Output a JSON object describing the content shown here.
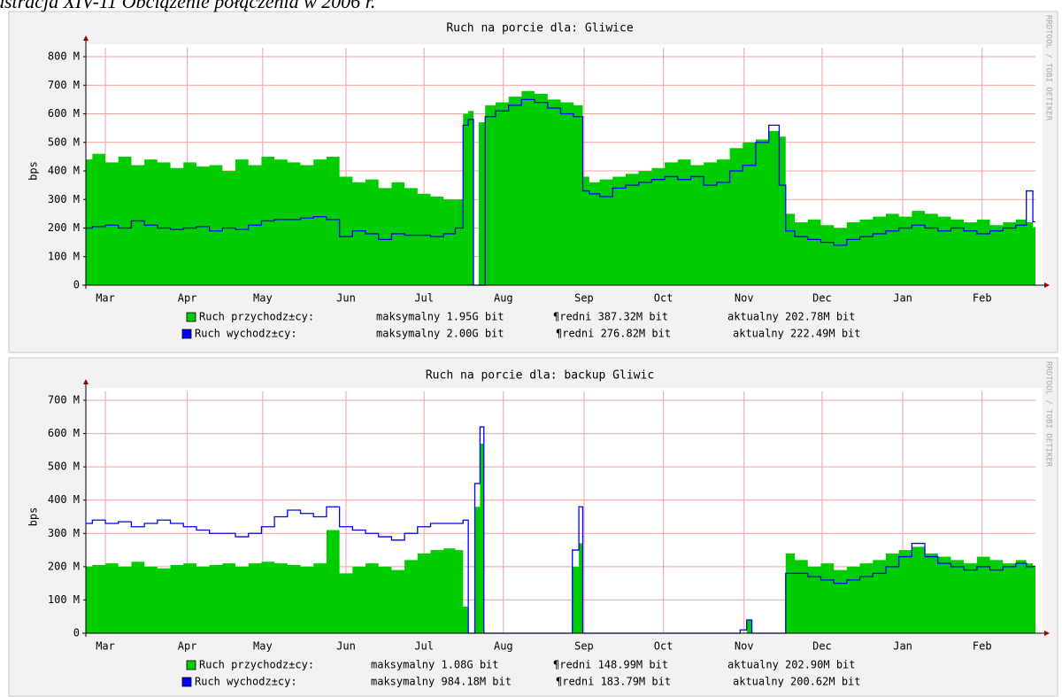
{
  "caption": "ustracja XIV-11 Obciążenie połączenia w 2006 r.",
  "chart_data": [
    {
      "type": "area",
      "title": "Ruch na porcie dla: Gliwice",
      "y_label": "bps",
      "watermark": "RRDTOOL / TOBI OETIKER",
      "xlim": [
        0,
        365
      ],
      "ylim": [
        0,
        800
      ],
      "grid": true,
      "xticks": [
        {
          "value": 7.5,
          "label": "Mar"
        },
        {
          "value": 39,
          "label": "Apr"
        },
        {
          "value": 68,
          "label": "May"
        },
        {
          "value": 100,
          "label": "Jun"
        },
        {
          "value": 130,
          "label": "Jul"
        },
        {
          "value": 160.5,
          "label": "Aug"
        },
        {
          "value": 191.5,
          "label": "Sep"
        },
        {
          "value": 222,
          "label": "Oct"
        },
        {
          "value": 253,
          "label": "Nov"
        },
        {
          "value": 283,
          "label": "Dec"
        },
        {
          "value": 314,
          "label": "Jan"
        },
        {
          "value": 344.5,
          "label": "Feb"
        }
      ],
      "yticks": [
        0,
        {
          "value": 100,
          "label": "100 M"
        },
        {
          "value": 200,
          "label": "200 M"
        },
        {
          "value": 300,
          "label": "300 M"
        },
        {
          "value": 400,
          "label": "400 M"
        },
        {
          "value": 500,
          "label": "500 M"
        },
        {
          "value": 600,
          "label": "600 M"
        },
        {
          "value": 700,
          "label": "700 M"
        },
        {
          "value": 800,
          "label": "800 M"
        }
      ],
      "x": [
        0,
        5,
        10,
        15,
        20,
        25,
        30,
        35,
        40,
        45,
        50,
        55,
        60,
        65,
        70,
        75,
        80,
        85,
        90,
        95,
        100,
        105,
        110,
        115,
        120,
        125,
        130,
        135,
        140,
        144,
        146,
        148,
        150,
        152,
        155,
        160,
        165,
        170,
        175,
        180,
        185,
        190,
        192,
        195,
        200,
        205,
        210,
        215,
        220,
        225,
        230,
        235,
        240,
        245,
        250,
        255,
        260,
        265,
        268,
        270,
        275,
        280,
        285,
        290,
        295,
        300,
        305,
        310,
        315,
        320,
        325,
        330,
        335,
        340,
        345,
        350,
        355,
        360,
        363,
        365
      ],
      "series": [
        {
          "name": "Ruch przychodz±cy:",
          "style": "area",
          "color": "#00cc00",
          "stats": [
            "maksymalny 1.95G bit",
            "¶redni 387.32M bit",
            "aktualny 202.78M bit"
          ],
          "values": [
            440,
            460,
            430,
            450,
            420,
            440,
            430,
            410,
            430,
            415,
            420,
            400,
            440,
            420,
            450,
            440,
            430,
            420,
            440,
            450,
            380,
            360,
            370,
            340,
            360,
            340,
            320,
            310,
            300,
            300,
            600,
            610,
            0,
            570,
            630,
            640,
            660,
            680,
            670,
            650,
            640,
            630,
            380,
            360,
            370,
            380,
            390,
            400,
            410,
            430,
            440,
            420,
            430,
            440,
            480,
            500,
            510,
            540,
            520,
            250,
            220,
            230,
            210,
            200,
            220,
            230,
            240,
            250,
            240,
            260,
            250,
            240,
            230,
            220,
            230,
            210,
            220,
            230,
            220,
            203
          ]
        },
        {
          "name": "Ruch wychodz±cy:",
          "style": "line",
          "color": "#0000ff",
          "stats": [
            "maksymalny 2.00G bit",
            "¶redni 276.82M bit",
            "aktualny 222.49M bit"
          ],
          "values": [
            200,
            205,
            210,
            200,
            225,
            210,
            200,
            195,
            200,
            205,
            190,
            200,
            195,
            210,
            225,
            230,
            230,
            235,
            240,
            230,
            170,
            190,
            180,
            160,
            180,
            175,
            175,
            170,
            180,
            200,
            560,
            580,
            0,
            0,
            590,
            610,
            630,
            650,
            640,
            620,
            600,
            590,
            330,
            320,
            310,
            340,
            350,
            360,
            370,
            380,
            370,
            380,
            350,
            360,
            400,
            420,
            500,
            560,
            350,
            190,
            170,
            160,
            150,
            140,
            160,
            170,
            180,
            190,
            200,
            210,
            200,
            190,
            200,
            190,
            180,
            190,
            200,
            210,
            330,
            222
          ]
        }
      ]
    },
    {
      "type": "area",
      "title": "Ruch na porcie dla: backup Gliwic",
      "y_label": "bps",
      "watermark": "RRDTOOL / TOBI OETIKER",
      "xlim": [
        0,
        365
      ],
      "ylim": [
        0,
        700
      ],
      "grid": true,
      "xticks": [
        {
          "value": 7.5,
          "label": "Mar"
        },
        {
          "value": 39,
          "label": "Apr"
        },
        {
          "value": 68,
          "label": "May"
        },
        {
          "value": 100,
          "label": "Jun"
        },
        {
          "value": 130,
          "label": "Jul"
        },
        {
          "value": 160.5,
          "label": "Aug"
        },
        {
          "value": 191.5,
          "label": "Sep"
        },
        {
          "value": 222,
          "label": "Oct"
        },
        {
          "value": 253,
          "label": "Nov"
        },
        {
          "value": 283,
          "label": "Dec"
        },
        {
          "value": 314,
          "label": "Jan"
        },
        {
          "value": 344.5,
          "label": "Feb"
        }
      ],
      "yticks": [
        0,
        {
          "value": 100,
          "label": "100 M"
        },
        {
          "value": 200,
          "label": "200 M"
        },
        {
          "value": 300,
          "label": "300 M"
        },
        {
          "value": 400,
          "label": "400 M"
        },
        {
          "value": 500,
          "label": "500 M"
        },
        {
          "value": 600,
          "label": "600 M"
        },
        {
          "value": 700,
          "label": "700 M"
        }
      ],
      "x": [
        0,
        5,
        10,
        15,
        20,
        25,
        30,
        35,
        40,
        45,
        50,
        55,
        60,
        65,
        70,
        75,
        80,
        85,
        90,
        95,
        100,
        105,
        110,
        115,
        120,
        125,
        130,
        135,
        140,
        144,
        146,
        148,
        151,
        152,
        154,
        160,
        185,
        189,
        190,
        192,
        200,
        250,
        253,
        255,
        257,
        268,
        270,
        275,
        280,
        285,
        290,
        295,
        300,
        305,
        310,
        315,
        320,
        325,
        330,
        335,
        340,
        345,
        350,
        355,
        360,
        363,
        365
      ],
      "series": [
        {
          "name": "Ruch przychodz±cy:",
          "style": "area",
          "color": "#00cc00",
          "stats": [
            "maksymalny 1.08G bit",
            "¶redni 148.99M bit",
            "aktualny 202.90M bit"
          ],
          "values": [
            200,
            205,
            210,
            200,
            215,
            200,
            195,
            205,
            210,
            200,
            205,
            210,
            200,
            210,
            215,
            210,
            205,
            200,
            210,
            310,
            180,
            200,
            210,
            200,
            190,
            220,
            240,
            250,
            255,
            250,
            80,
            0,
            380,
            570,
            0,
            0,
            0,
            200,
            270,
            0,
            0,
            0,
            0,
            40,
            0,
            0,
            240,
            220,
            200,
            210,
            190,
            200,
            210,
            220,
            240,
            250,
            260,
            240,
            230,
            220,
            210,
            230,
            220,
            210,
            220,
            210,
            203
          ]
        },
        {
          "name": "Ruch wychodz±cy:",
          "style": "line",
          "color": "#0000ff",
          "stats": [
            "maksymalny 984.18M bit",
            "¶redni 183.79M bit",
            "aktualny 200.62M bit"
          ],
          "values": [
            330,
            340,
            330,
            335,
            320,
            330,
            340,
            330,
            320,
            310,
            300,
            300,
            290,
            300,
            320,
            350,
            370,
            360,
            350,
            380,
            320,
            310,
            300,
            290,
            280,
            300,
            320,
            330,
            330,
            330,
            340,
            0,
            450,
            620,
            0,
            0,
            0,
            250,
            380,
            0,
            0,
            0,
            10,
            40,
            0,
            0,
            180,
            180,
            170,
            160,
            150,
            160,
            170,
            180,
            200,
            230,
            270,
            230,
            210,
            200,
            190,
            200,
            190,
            200,
            210,
            200,
            201
          ]
        }
      ]
    }
  ]
}
